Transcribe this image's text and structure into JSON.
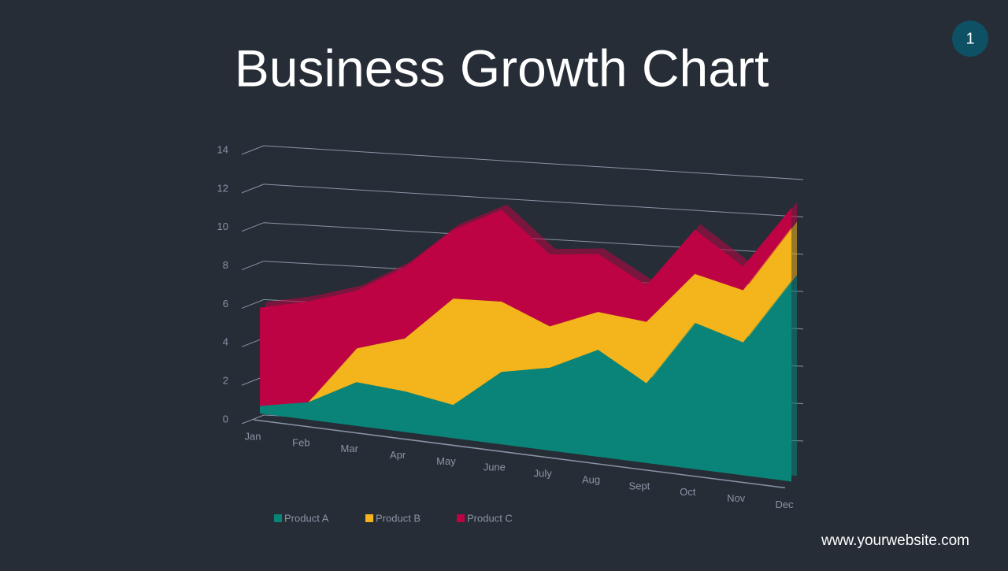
{
  "page_number": "1",
  "footer": "www.yourwebsite.com",
  "chart_data": {
    "type": "area",
    "title": "Business Growth Chart",
    "stacked": true,
    "categories": [
      "Jan",
      "Feb",
      "Mar",
      "Apr",
      "May",
      "June",
      "July",
      "Aug",
      "Sept",
      "Oct",
      "Nov",
      "Dec"
    ],
    "series": [
      {
        "name": "Product A",
        "color": "#0a8478",
        "values": [
          0.4,
          0.9,
          2.2,
          2.0,
          1.6,
          3.4,
          3.8,
          4.8,
          3.5,
          6.3,
          5.6,
          8.3
        ]
      },
      {
        "name": "Product B",
        "color": "#f3b51b",
        "values": [
          0,
          0,
          1.7,
          2.6,
          5.1,
          3.3,
          1.9,
          1.7,
          2.7,
          2.1,
          2.2,
          2.2
        ]
      },
      {
        "name": "Product C",
        "color": "#bd0344",
        "values": [
          5.2,
          5.2,
          2.9,
          3.5,
          3.3,
          4.3,
          3.3,
          2.6,
          1.6,
          1.9,
          1.0,
          0.8
        ]
      }
    ],
    "ylim": [
      0,
      14
    ],
    "yticks": [
      0,
      2,
      4,
      6,
      8,
      10,
      12,
      14
    ],
    "grid": true,
    "legend": "bottom-left"
  }
}
